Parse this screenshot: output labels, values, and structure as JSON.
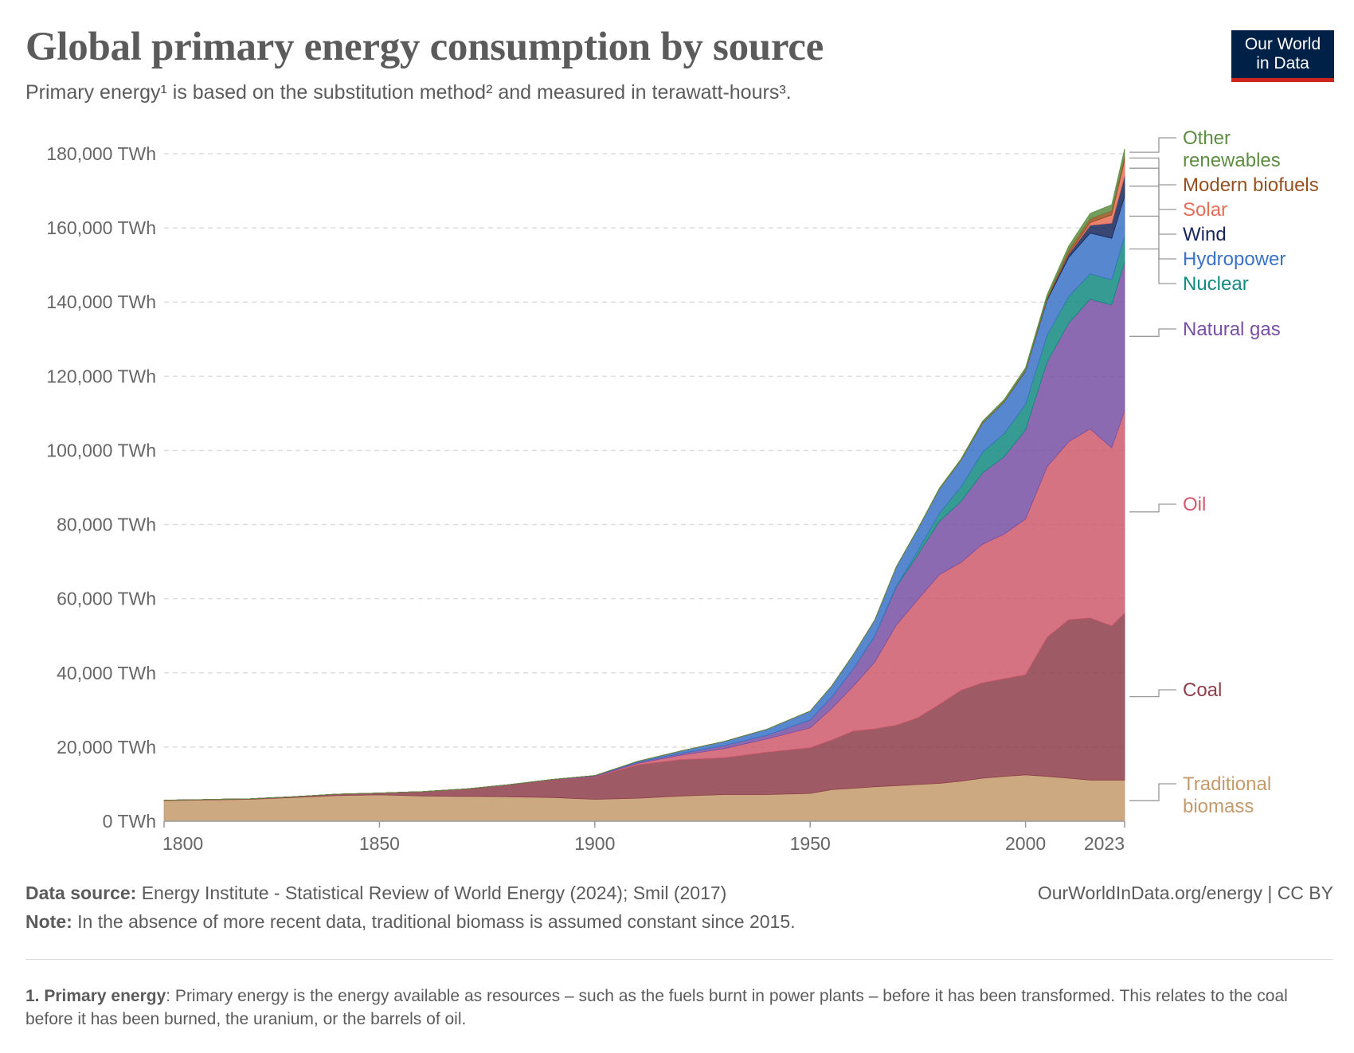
{
  "header": {
    "title": "Global primary energy consumption by source",
    "subtitle": "Primary energy¹ is based on the substitution method² and measured in terawatt-hours³.",
    "logo_line1": "Our World",
    "logo_line2": "in Data"
  },
  "chart_data": {
    "type": "area",
    "stacked": true,
    "x": [
      1800,
      1820,
      1830,
      1840,
      1850,
      1860,
      1870,
      1880,
      1890,
      1900,
      1910,
      1920,
      1930,
      1940,
      1950,
      1955,
      1960,
      1965,
      1970,
      1975,
      1980,
      1985,
      1990,
      1995,
      2000,
      2005,
      2010,
      2015,
      2020,
      2023
    ],
    "series": [
      {
        "name": "Traditional biomass",
        "color": "#c49a6c",
        "values": [
          5560,
          5900,
          6400,
          6900,
          7100,
          6800,
          6700,
          6600,
          6400,
          5900,
          6200,
          6800,
          7200,
          7200,
          7500,
          8500,
          8900,
          9300,
          9600,
          9900,
          10200,
          10800,
          11600,
          12100,
          12500,
          12100,
          11600,
          11100,
          11100,
          11100
        ]
      },
      {
        "name": "Coal",
        "color": "#8e3e4a",
        "values": [
          100,
          150,
          200,
          400,
          500,
          1200,
          2000,
          3200,
          4700,
          6000,
          9000,
          9800,
          9900,
          11400,
          12300,
          13400,
          15400,
          15600,
          16300,
          18000,
          21300,
          24500,
          25700,
          26300,
          27000,
          37500,
          42700,
          43700,
          41600,
          45000
        ]
      },
      {
        "name": "Oil",
        "color": "#cf5a6d",
        "values": [
          0,
          0,
          0,
          0,
          0,
          0,
          0,
          10,
          50,
          180,
          400,
          1200,
          2500,
          3600,
          5400,
          8500,
          12100,
          18000,
          27000,
          31900,
          35000,
          34500,
          37400,
          39000,
          42000,
          46000,
          48000,
          51000,
          48000,
          54600
        ]
      },
      {
        "name": "Natural gas",
        "color": "#7850a3",
        "values": [
          0,
          0,
          0,
          0,
          0,
          0,
          0,
          30,
          80,
          180,
          300,
          500,
          800,
          1000,
          2100,
          3100,
          4700,
          7000,
          10300,
          12100,
          14400,
          16400,
          19200,
          20900,
          24000,
          28200,
          32000,
          35000,
          38500,
          40100
        ]
      },
      {
        "name": "Nuclear",
        "color": "#138a80",
        "values": [
          0,
          0,
          0,
          0,
          0,
          0,
          0,
          0,
          0,
          0,
          0,
          0,
          0,
          0,
          0,
          0,
          20,
          60,
          200,
          1000,
          2100,
          3900,
          5600,
          6200,
          6900,
          7200,
          7200,
          6800,
          6800,
          7000
        ]
      },
      {
        "name": "Hydropower",
        "color": "#3a72c6",
        "values": [
          0,
          0,
          0,
          0,
          0,
          0,
          0,
          0,
          10,
          40,
          250,
          650,
          1100,
          1600,
          2400,
          3000,
          3800,
          4300,
          5200,
          5900,
          6600,
          7200,
          7800,
          8500,
          9000,
          9500,
          10500,
          11000,
          11200,
          10700
        ]
      },
      {
        "name": "Wind",
        "color": "#17275a",
        "values": [
          0,
          0,
          0,
          0,
          0,
          0,
          0,
          0,
          0,
          0,
          0,
          0,
          0,
          0,
          0,
          0,
          0,
          0,
          0,
          0,
          0,
          0,
          10,
          20,
          100,
          300,
          900,
          2100,
          4100,
          5500
        ]
      },
      {
        "name": "Solar",
        "color": "#e66d57",
        "values": [
          0,
          0,
          0,
          0,
          0,
          0,
          0,
          0,
          0,
          0,
          0,
          0,
          0,
          0,
          0,
          0,
          0,
          0,
          0,
          0,
          0,
          0,
          0,
          0,
          10,
          20,
          100,
          700,
          2200,
          4200
        ]
      },
      {
        "name": "Modern biofuels",
        "color": "#964f1d",
        "values": [
          0,
          0,
          0,
          0,
          0,
          0,
          0,
          0,
          0,
          0,
          0,
          0,
          0,
          0,
          0,
          0,
          0,
          0,
          0,
          0,
          50,
          100,
          150,
          180,
          200,
          400,
          1000,
          1100,
          1150,
          1300
        ]
      },
      {
        "name": "Other renewables",
        "color": "#5d8d42",
        "values": [
          0,
          0,
          0,
          0,
          0,
          0,
          0,
          0,
          0,
          0,
          0,
          0,
          0,
          0,
          0,
          0,
          20,
          40,
          80,
          150,
          200,
          300,
          400,
          500,
          600,
          800,
          1100,
          1400,
          1600,
          1800
        ]
      }
    ],
    "legend_labels": [
      "Other",
      "renewables",
      "Modern biofuels",
      "Solar",
      "Wind",
      "Hydropower",
      "Nuclear",
      "Natural gas",
      "Oil",
      "Coal",
      "Traditional",
      "biomass"
    ],
    "y_ticks": [
      "0 TWh",
      "20,000 TWh",
      "40,000 TWh",
      "60,000 TWh",
      "80,000 TWh",
      "100,000 TWh",
      "120,000 TWh",
      "140,000 TWh",
      "160,000 TWh",
      "180,000 TWh"
    ],
    "x_ticks": [
      "1800",
      "1850",
      "1900",
      "1950",
      "2000",
      "2023"
    ],
    "ylim": [
      0,
      180000
    ],
    "xlim": [
      1800,
      2023
    ],
    "grid": true,
    "legend_placement": "right"
  },
  "footer": {
    "source_label": "Data source:",
    "source_text": " Energy Institute - Statistical Review of World Energy (2024); Smil (2017)",
    "note_label": "Note:",
    "note_text": " In the absence of more recent data, traditional biomass is assumed constant since 2015.",
    "right_text": "OurWorldInData.org/energy | CC BY"
  },
  "footnote": {
    "label": "1. Primary energy",
    "text": ": Primary energy is the energy available as resources – such as the fuels burnt in power plants – before it has been transformed. This relates to the coal before it has been burned, the uranium, or the barrels of oil."
  }
}
